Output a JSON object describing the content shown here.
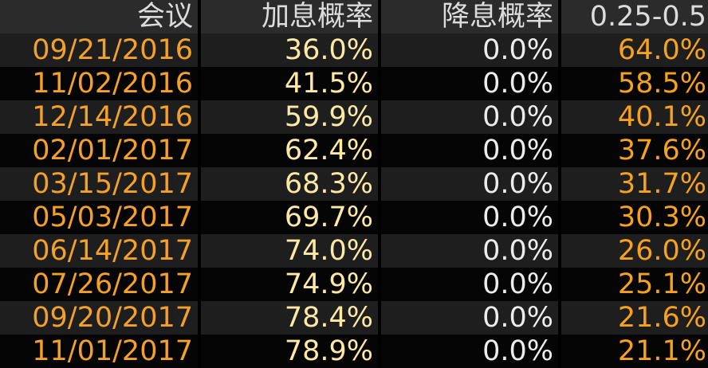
{
  "table": {
    "header": [
      "会议",
      "加息概率",
      "降息概率",
      "0.25-0.5"
    ],
    "rows": [
      [
        "09/21/2016",
        "36.0%",
        "0.0%",
        "64.0%"
      ],
      [
        "11/02/2016",
        "41.5%",
        "0.0%",
        "58.5%"
      ],
      [
        "12/14/2016",
        "59.9%",
        "0.0%",
        "40.1%"
      ],
      [
        "02/01/2017",
        "62.4%",
        "0.0%",
        "37.6%"
      ],
      [
        "03/15/2017",
        "68.3%",
        "0.0%",
        "31.7%"
      ],
      [
        "05/03/2017",
        "69.7%",
        "0.0%",
        "30.3%"
      ],
      [
        "06/14/2017",
        "74.0%",
        "0.0%",
        "26.0%"
      ],
      [
        "07/26/2017",
        "74.9%",
        "0.0%",
        "25.1%"
      ],
      [
        "09/20/2017",
        "78.4%",
        "0.0%",
        "21.6%"
      ],
      [
        "11/01/2017",
        "78.9%",
        "0.0%",
        "21.1%"
      ]
    ]
  }
}
